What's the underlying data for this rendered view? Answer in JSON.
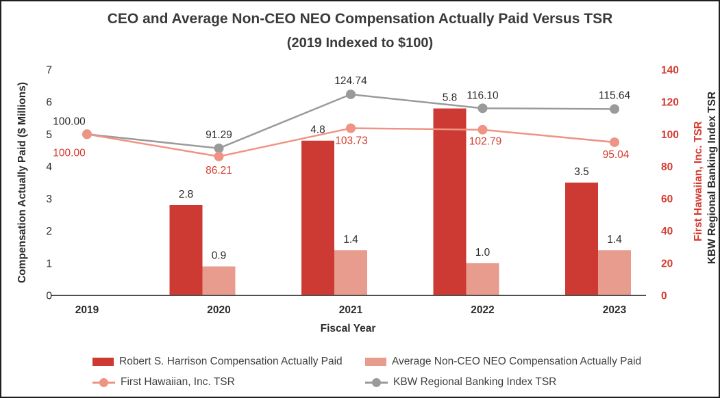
{
  "title": {
    "line1": "CEO and Average Non-CEO NEO Compensation Actually Paid Versus TSR",
    "line2": "(2019 Indexed to $100)"
  },
  "colors": {
    "ceo_bar": "#cd3a33",
    "nonceo_bar": "#e89c8d",
    "fh_line": "#ee9484",
    "kbw_line": "#9a9a9a",
    "red_text": "#d43a2e",
    "dark_text": "#2b2b2b",
    "axis_line": "#4f4f4f"
  },
  "chart_data": {
    "type": "combo (grouped bar + two lines, dual y-axis)",
    "categories": [
      "2019",
      "2020",
      "2021",
      "2022",
      "2023"
    ],
    "xlabel": "Fiscal Year",
    "left_axis": {
      "label": "Compensation Actually Paid ($ Millions)",
      "min": 0,
      "max": 7,
      "tick_step": 1,
      "ticks": [
        "0",
        "1",
        "2",
        "3",
        "4",
        "5",
        "6",
        "7"
      ]
    },
    "right_axis": {
      "label_fh": "First Hawaiian, Inc. TSR",
      "label_kbw": "KBW Regional Banking Index TSR",
      "min": 0,
      "max": 140,
      "tick_step": 20,
      "ticks": [
        "0",
        "20",
        "40",
        "60",
        "80",
        "100",
        "120",
        "140"
      ]
    },
    "series": [
      {
        "name": "Robert S. Harrison Compensation Actually Paid",
        "type": "bar",
        "axis": "left",
        "color_key": "ceo_bar",
        "values": [
          null,
          2.8,
          4.8,
          5.8,
          3.5
        ],
        "labels": [
          null,
          "2.8",
          "4.8",
          "5.8",
          "3.5"
        ]
      },
      {
        "name": "Average Non-CEO NEO Compensation Actually Paid",
        "type": "bar",
        "axis": "left",
        "color_key": "nonceo_bar",
        "values": [
          null,
          0.9,
          1.4,
          1.0,
          1.4
        ],
        "labels": [
          null,
          "0.9",
          "1.4",
          "1.0",
          "1.4"
        ]
      },
      {
        "name": "First Hawaiian, Inc. TSR",
        "type": "line",
        "axis": "right",
        "color_key": "fh_line",
        "label_color_key": "red_text",
        "values": [
          100.0,
          86.21,
          103.73,
          102.79,
          95.04
        ],
        "labels": [
          "100.00",
          "86.21",
          "103.73",
          "102.79",
          "95.04"
        ]
      },
      {
        "name": "KBW Regional Banking Index TSR",
        "type": "line",
        "axis": "right",
        "color_key": "kbw_line",
        "label_color_key": "dark_text",
        "values": [
          100.0,
          91.29,
          124.74,
          116.1,
          115.64
        ],
        "labels": [
          "100.00",
          "91.29",
          "124.74",
          "116.10",
          "115.64"
        ]
      }
    ],
    "legend": [
      {
        "label": "Robert S. Harrison Compensation Actually Paid",
        "marker": "bar",
        "color_key": "ceo_bar"
      },
      {
        "label": "Average Non-CEO NEO Compensation Actually Paid",
        "marker": "bar",
        "color_key": "nonceo_bar"
      },
      {
        "label": "First Hawaiian, Inc. TSR",
        "marker": "line-dot",
        "color_key": "fh_line"
      },
      {
        "label": "KBW Regional Banking Index TSR",
        "marker": "line-dot",
        "color_key": "kbw_line"
      }
    ]
  }
}
